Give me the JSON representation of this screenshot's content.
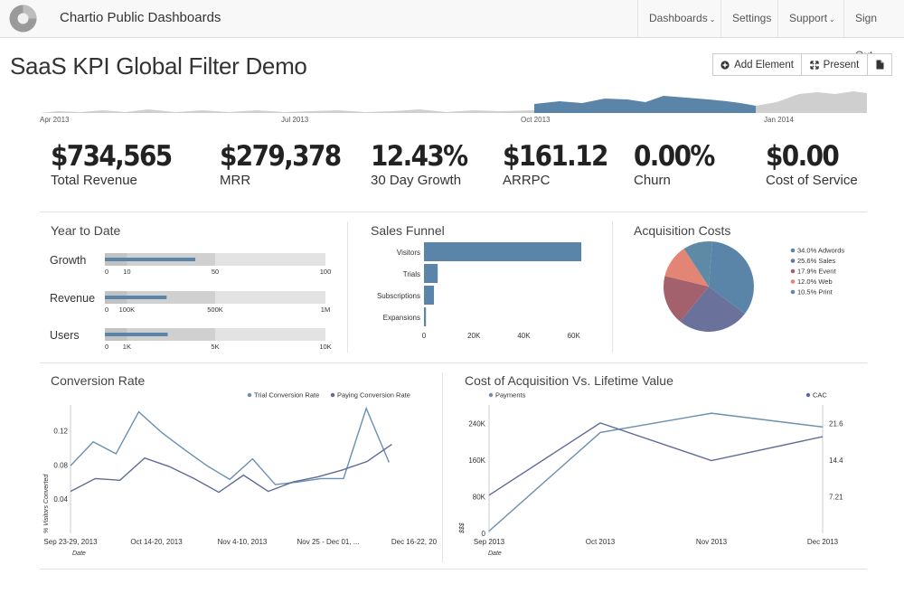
{
  "app": {
    "title": "Chartio Public Dashboards"
  },
  "nav": {
    "dashboards": "Dashboards",
    "settings": "Settings",
    "support": "Support",
    "signout": "Sign Out"
  },
  "page": {
    "title": "SaaS KPI Global Filter Demo"
  },
  "toolbar": {
    "add_element": "Add Element",
    "present": "Present"
  },
  "timeline": {
    "labels": [
      "Apr 2013",
      "Jul 2013",
      "Oct 2013",
      "Jan 2014"
    ]
  },
  "kpis": [
    {
      "value": "$734,565",
      "label": "Total Revenue"
    },
    {
      "value": "$279,378",
      "label": "MRR"
    },
    {
      "value": "12.43%",
      "label": "30 Day Growth"
    },
    {
      "value": "$161.12",
      "label": "ARRPC"
    },
    {
      "value": "0.00%",
      "label": "Churn"
    },
    {
      "value": "$0.00",
      "label": "Cost of Service"
    }
  ],
  "colors": {
    "primary": "#5b85a8",
    "navbg": "#f8f8f8",
    "gray": "#cccccc"
  },
  "panels": {
    "ytd": "Year to Date",
    "funnel": "Sales Funnel",
    "acq": "Acquisition Costs",
    "conv": "Conversion Rate",
    "cac": "Cost of Acquisition Vs. Lifetime Value"
  },
  "chart_data": [
    {
      "type": "bar",
      "subtype": "bullet",
      "title": "Year to Date",
      "rows": [
        {
          "label": "Growth",
          "value": 41,
          "marker": 10,
          "max": 100,
          "ticks": [
            "0",
            "10",
            "50",
            "100"
          ],
          "tick_values": [
            0,
            10,
            50,
            100
          ]
        },
        {
          "label": "Revenue",
          "value": 280000,
          "marker": 100000,
          "max": 1000000,
          "ticks": [
            "0",
            "100K",
            "500K",
            "1M"
          ],
          "tick_values": [
            0,
            100000,
            500000,
            1000000
          ]
        },
        {
          "label": "Users",
          "value": 2850,
          "marker": 1000,
          "max": 10000,
          "ticks": [
            "0",
            "1K",
            "5K",
            "10K"
          ],
          "tick_values": [
            0,
            1000,
            5000,
            10000
          ]
        }
      ]
    },
    {
      "type": "bar",
      "title": "Sales Funnel",
      "orientation": "horizontal",
      "categories": [
        "Visitors",
        "Trials",
        "Subscriptions",
        "Expansions"
      ],
      "values": [
        63000,
        5500,
        4000,
        800
      ],
      "xlim": [
        0,
        63000
      ],
      "xticks": [
        0,
        20000,
        40000,
        60000
      ],
      "xtick_labels": [
        "0",
        "20K",
        "40K",
        "60K"
      ]
    },
    {
      "type": "pie",
      "title": "Acquisition Costs",
      "legend": [
        "34.0% Adwords",
        "25.6% Sales",
        "17.9% Event",
        "12.0% Web",
        "10.5% Print"
      ],
      "values": [
        34.0,
        25.6,
        17.9,
        12.0,
        10.5
      ],
      "colors": [
        "#5b85a8",
        "#6a729c",
        "#a2616c",
        "#e38575",
        "#5f8aa6"
      ],
      "legend_position": "right"
    },
    {
      "type": "line",
      "title": "Conversion Rate",
      "xlabel": "Date",
      "ylabel": "% Visitors Converted",
      "x_tick_labels": [
        "Sep 23-29, 2013",
        "Oct 14-20, 2013",
        "Nov 4-10, 2013",
        "Nov 25 - Dec 01, ...",
        "Dec 16-22, 20"
      ],
      "x_tick_index": [
        0,
        4,
        8,
        12,
        16
      ],
      "ylim": [
        0,
        0.15
      ],
      "yticks": [
        0.04,
        0.08,
        0.12
      ],
      "series": [
        {
          "name": "Trial Conversion Rate",
          "values": [
            0.079,
            0.107,
            0.093,
            0.142,
            0.118,
            0.098,
            0.079,
            0.063,
            0.087,
            0.057,
            0.06,
            0.064,
            0.064,
            0.146,
            0.083
          ]
        },
        {
          "name": "Paying Conversion Rate",
          "values": [
            0.049,
            0.064,
            0.062,
            0.088,
            0.078,
            0.064,
            0.048,
            0.068,
            0.049,
            0.06,
            0.066,
            0.074,
            0.084,
            0.104
          ]
        }
      ],
      "legend_position": "top-right"
    },
    {
      "type": "line",
      "title": "Cost of Acquisition Vs. Lifetime Value",
      "xlabel": "Date",
      "ylabel": "$$$",
      "categories": [
        "Sep 2013",
        "Oct 2013",
        "Nov 2013",
        "Dec 2013"
      ],
      "y_left_ticks": [
        "0",
        "80K",
        "160K",
        "240K"
      ],
      "y_left_values": [
        0,
        80000,
        160000,
        240000
      ],
      "y_left_lim": [
        0,
        280000
      ],
      "y_right_ticks": [
        "7.21",
        "14.4",
        "21.6"
      ],
      "y_right_values": [
        7.21,
        14.4,
        21.6
      ],
      "y_right_lim": [
        0,
        25.23
      ],
      "series": [
        {
          "name": "Payments",
          "axis": "left",
          "values": [
            5000,
            220000,
            262000,
            232000
          ]
        },
        {
          "name": "CAC",
          "axis": "right",
          "values": [
            7.5,
            21.7,
            14.3,
            19.0
          ]
        }
      ]
    }
  ]
}
